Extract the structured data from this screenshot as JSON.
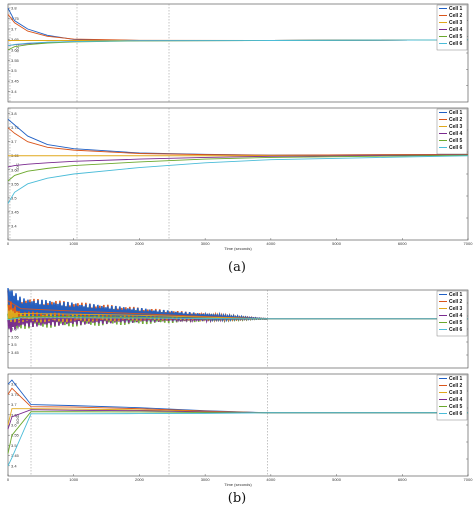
{
  "figure": {
    "captions": [
      "(a)",
      "(b)"
    ]
  },
  "colors": {
    "series": [
      "#1f5fc4",
      "#d9541a",
      "#e0a81c",
      "#7a2a8f",
      "#6ba82c",
      "#4bbcd8"
    ]
  },
  "chart_data": [
    {
      "type": "line",
      "panel": "a-top",
      "xlim": [
        0,
        7000
      ],
      "ylim": [
        3.35,
        3.82
      ],
      "yticks": [
        "3.8",
        "3.75",
        "3.7",
        "3.65",
        "3.6",
        "3.55",
        "3.5",
        "3.45",
        "3.4"
      ],
      "ylabel": "SOC",
      "legend": "top-right",
      "vlines": [
        30,
        1050,
        2450
      ],
      "series": [
        {
          "name": "Cell 1",
          "x": [
            0,
            100,
            300,
            600,
            1000,
            2000,
            4000,
            7000
          ],
          "y": [
            3.8,
            3.74,
            3.7,
            3.67,
            3.65,
            3.645,
            3.645,
            3.648
          ]
        },
        {
          "name": "Cell 2",
          "x": [
            0,
            100,
            300,
            600,
            1000,
            2000,
            4000,
            7000
          ],
          "y": [
            3.77,
            3.73,
            3.69,
            3.665,
            3.652,
            3.646,
            3.645,
            3.648
          ]
        },
        {
          "name": "Cell 3",
          "x": [
            0,
            100,
            300,
            600,
            1000,
            2000,
            4000,
            7000
          ],
          "y": [
            3.645,
            3.645,
            3.645,
            3.645,
            3.645,
            3.645,
            3.645,
            3.648
          ]
        },
        {
          "name": "Cell 4",
          "x": [
            0,
            100,
            300,
            600,
            1000,
            2000,
            4000,
            7000
          ],
          "y": [
            3.62,
            3.625,
            3.63,
            3.636,
            3.64,
            3.644,
            3.645,
            3.648
          ]
        },
        {
          "name": "Cell 5",
          "x": [
            0,
            100,
            300,
            600,
            1000,
            2000,
            4000,
            7000
          ],
          "y": [
            3.6,
            3.615,
            3.625,
            3.633,
            3.638,
            3.643,
            3.645,
            3.648
          ]
        },
        {
          "name": "Cell 6",
          "x": [
            0,
            100,
            300,
            600,
            1000,
            2000,
            4000,
            7000
          ],
          "y": [
            3.62,
            3.626,
            3.632,
            3.637,
            3.64,
            3.644,
            3.645,
            3.648
          ]
        }
      ]
    },
    {
      "type": "line",
      "panel": "a-bottom",
      "xlim": [
        0,
        7000
      ],
      "ylim": [
        3.35,
        3.82
      ],
      "xticks": [
        "0",
        "1000",
        "2000",
        "3000",
        "4000",
        "5000",
        "6000",
        "7000"
      ],
      "yticks": [
        "3.8",
        "3.75",
        "3.7",
        "3.65",
        "3.6",
        "3.55",
        "3.5",
        "3.45",
        "3.4"
      ],
      "ylabel": "SOC",
      "xlabel": "Time (seconds)",
      "legend": "top-right",
      "vlines": [
        30,
        1050,
        2450
      ],
      "series": [
        {
          "name": "Cell 1",
          "x": [
            0,
            100,
            300,
            600,
            1000,
            2000,
            3000,
            4000,
            7000
          ],
          "y": [
            3.78,
            3.76,
            3.72,
            3.69,
            3.675,
            3.66,
            3.655,
            3.652,
            3.655
          ]
        },
        {
          "name": "Cell 2",
          "x": [
            0,
            100,
            300,
            600,
            1000,
            2000,
            3000,
            4000,
            7000
          ],
          "y": [
            3.75,
            3.73,
            3.7,
            3.68,
            3.67,
            3.658,
            3.654,
            3.652,
            3.655
          ]
        },
        {
          "name": "Cell 3",
          "x": [
            0,
            100,
            300,
            600,
            1000,
            2000,
            3000,
            4000,
            7000
          ],
          "y": [
            3.65,
            3.65,
            3.65,
            3.65,
            3.65,
            3.65,
            3.65,
            3.65,
            3.652
          ]
        },
        {
          "name": "Cell 4",
          "x": [
            0,
            100,
            300,
            600,
            1000,
            2000,
            3000,
            4000,
            7000
          ],
          "y": [
            3.61,
            3.615,
            3.62,
            3.625,
            3.63,
            3.638,
            3.644,
            3.648,
            3.653
          ]
        },
        {
          "name": "Cell 5",
          "x": [
            0,
            100,
            300,
            600,
            1000,
            2000,
            3000,
            4000,
            7000
          ],
          "y": [
            3.56,
            3.58,
            3.595,
            3.605,
            3.615,
            3.628,
            3.638,
            3.644,
            3.652
          ]
        },
        {
          "name": "Cell 6",
          "x": [
            0,
            100,
            300,
            600,
            1000,
            2000,
            3000,
            4000,
            7000
          ],
          "y": [
            3.48,
            3.52,
            3.55,
            3.57,
            3.585,
            3.608,
            3.625,
            3.636,
            3.65
          ]
        }
      ]
    },
    {
      "type": "line",
      "panel": "b-top",
      "xlim": [
        0,
        7000
      ],
      "ylim": [
        3.35,
        3.85
      ],
      "yticks": [
        "3.8",
        "3.75",
        "3.7",
        "3.65",
        "3.6",
        "3.55",
        "3.5",
        "3.45"
      ],
      "ylabel": "SOC",
      "legend": "top-right",
      "vlines": [
        350,
        2450,
        3950
      ],
      "oscillation_end_x": 3950,
      "series": [
        {
          "name": "Cell 1",
          "x": [
            0,
            200,
            1000,
            2000,
            3000,
            3950,
            7000
          ],
          "y": [
            3.82,
            3.74,
            3.72,
            3.7,
            3.68,
            3.665,
            3.665
          ],
          "amp": [
            0.06,
            0.06,
            0.05,
            0.035,
            0.02,
            0.0,
            0.0
          ]
        },
        {
          "name": "Cell 2",
          "x": [
            0,
            200,
            1000,
            2000,
            3000,
            3950,
            7000
          ],
          "y": [
            3.78,
            3.73,
            3.715,
            3.698,
            3.68,
            3.665,
            3.665
          ],
          "amp": [
            0.07,
            0.07,
            0.06,
            0.04,
            0.02,
            0.0,
            0.0
          ]
        },
        {
          "name": "Cell 3",
          "x": [
            0,
            200,
            1000,
            2000,
            3000,
            3950,
            7000
          ],
          "y": [
            3.7,
            3.7,
            3.695,
            3.688,
            3.676,
            3.665,
            3.665
          ],
          "amp": [
            0.06,
            0.06,
            0.05,
            0.035,
            0.018,
            0.0,
            0.0
          ]
        },
        {
          "name": "Cell 4",
          "x": [
            0,
            200,
            1000,
            2000,
            3000,
            3950,
            7000
          ],
          "y": [
            3.62,
            3.66,
            3.67,
            3.672,
            3.668,
            3.665,
            3.665
          ],
          "amp": [
            0.05,
            0.05,
            0.045,
            0.03,
            0.015,
            0.0,
            0.0
          ]
        },
        {
          "name": "Cell 5",
          "x": [
            0,
            200,
            1000,
            2000,
            3000,
            3950,
            7000
          ],
          "y": [
            3.66,
            3.68,
            3.68,
            3.675,
            3.668,
            3.665,
            3.665
          ],
          "amp": [
            0.08,
            0.08,
            0.065,
            0.045,
            0.02,
            0.0,
            0.0
          ]
        },
        {
          "name": "Cell 6",
          "x": [
            0,
            200,
            1000,
            2000,
            3000,
            3950,
            7000
          ],
          "y": [
            3.66,
            3.672,
            3.672,
            3.67,
            3.667,
            3.665,
            3.665
          ],
          "amp": [
            0.02,
            0.02,
            0.02,
            0.015,
            0.008,
            0.0,
            0.0
          ]
        }
      ]
    },
    {
      "type": "line",
      "panel": "b-bottom",
      "xlim": [
        0,
        7000
      ],
      "ylim": [
        3.35,
        3.85
      ],
      "xticks": [
        "0",
        "1000",
        "2000",
        "3000",
        "4000",
        "5000",
        "6000",
        "7000"
      ],
      "yticks": [
        "3.8",
        "3.75",
        "3.7",
        "3.65",
        "3.6",
        "3.55",
        "3.5",
        "3.45",
        "3.4"
      ],
      "ylabel": "SOC",
      "xlabel": "Time (seconds)",
      "legend": "top-right",
      "vlines": [
        350,
        2450,
        3950
      ],
      "series": [
        {
          "name": "Cell 1",
          "x": [
            0,
            60,
            350,
            1000,
            2000,
            3000,
            3950,
            7000
          ],
          "y": [
            3.8,
            3.82,
            3.7,
            3.695,
            3.685,
            3.67,
            3.66,
            3.66
          ]
        },
        {
          "name": "Cell 2",
          "x": [
            0,
            60,
            350,
            1000,
            2000,
            3000,
            3950,
            7000
          ],
          "y": [
            3.75,
            3.78,
            3.69,
            3.688,
            3.68,
            3.668,
            3.66,
            3.66
          ]
        },
        {
          "name": "Cell 3",
          "x": [
            0,
            60,
            350,
            1000,
            2000,
            3000,
            3950,
            7000
          ],
          "y": [
            3.6,
            3.68,
            3.68,
            3.678,
            3.674,
            3.666,
            3.66,
            3.66
          ]
        },
        {
          "name": "Cell 4",
          "x": [
            0,
            60,
            350,
            1000,
            2000,
            3000,
            3950,
            7000
          ],
          "y": [
            3.58,
            3.64,
            3.675,
            3.672,
            3.67,
            3.664,
            3.66,
            3.66
          ]
        },
        {
          "name": "Cell 5",
          "x": [
            0,
            60,
            350,
            1000,
            2000,
            3000,
            3950,
            7000
          ],
          "y": [
            3.46,
            3.55,
            3.665,
            3.665,
            3.664,
            3.661,
            3.66,
            3.66
          ]
        },
        {
          "name": "Cell 6",
          "x": [
            0,
            60,
            350,
            1000,
            2000,
            3000,
            3950,
            7000
          ],
          "y": [
            3.4,
            3.44,
            3.655,
            3.655,
            3.656,
            3.657,
            3.66,
            3.66
          ]
        }
      ]
    }
  ]
}
